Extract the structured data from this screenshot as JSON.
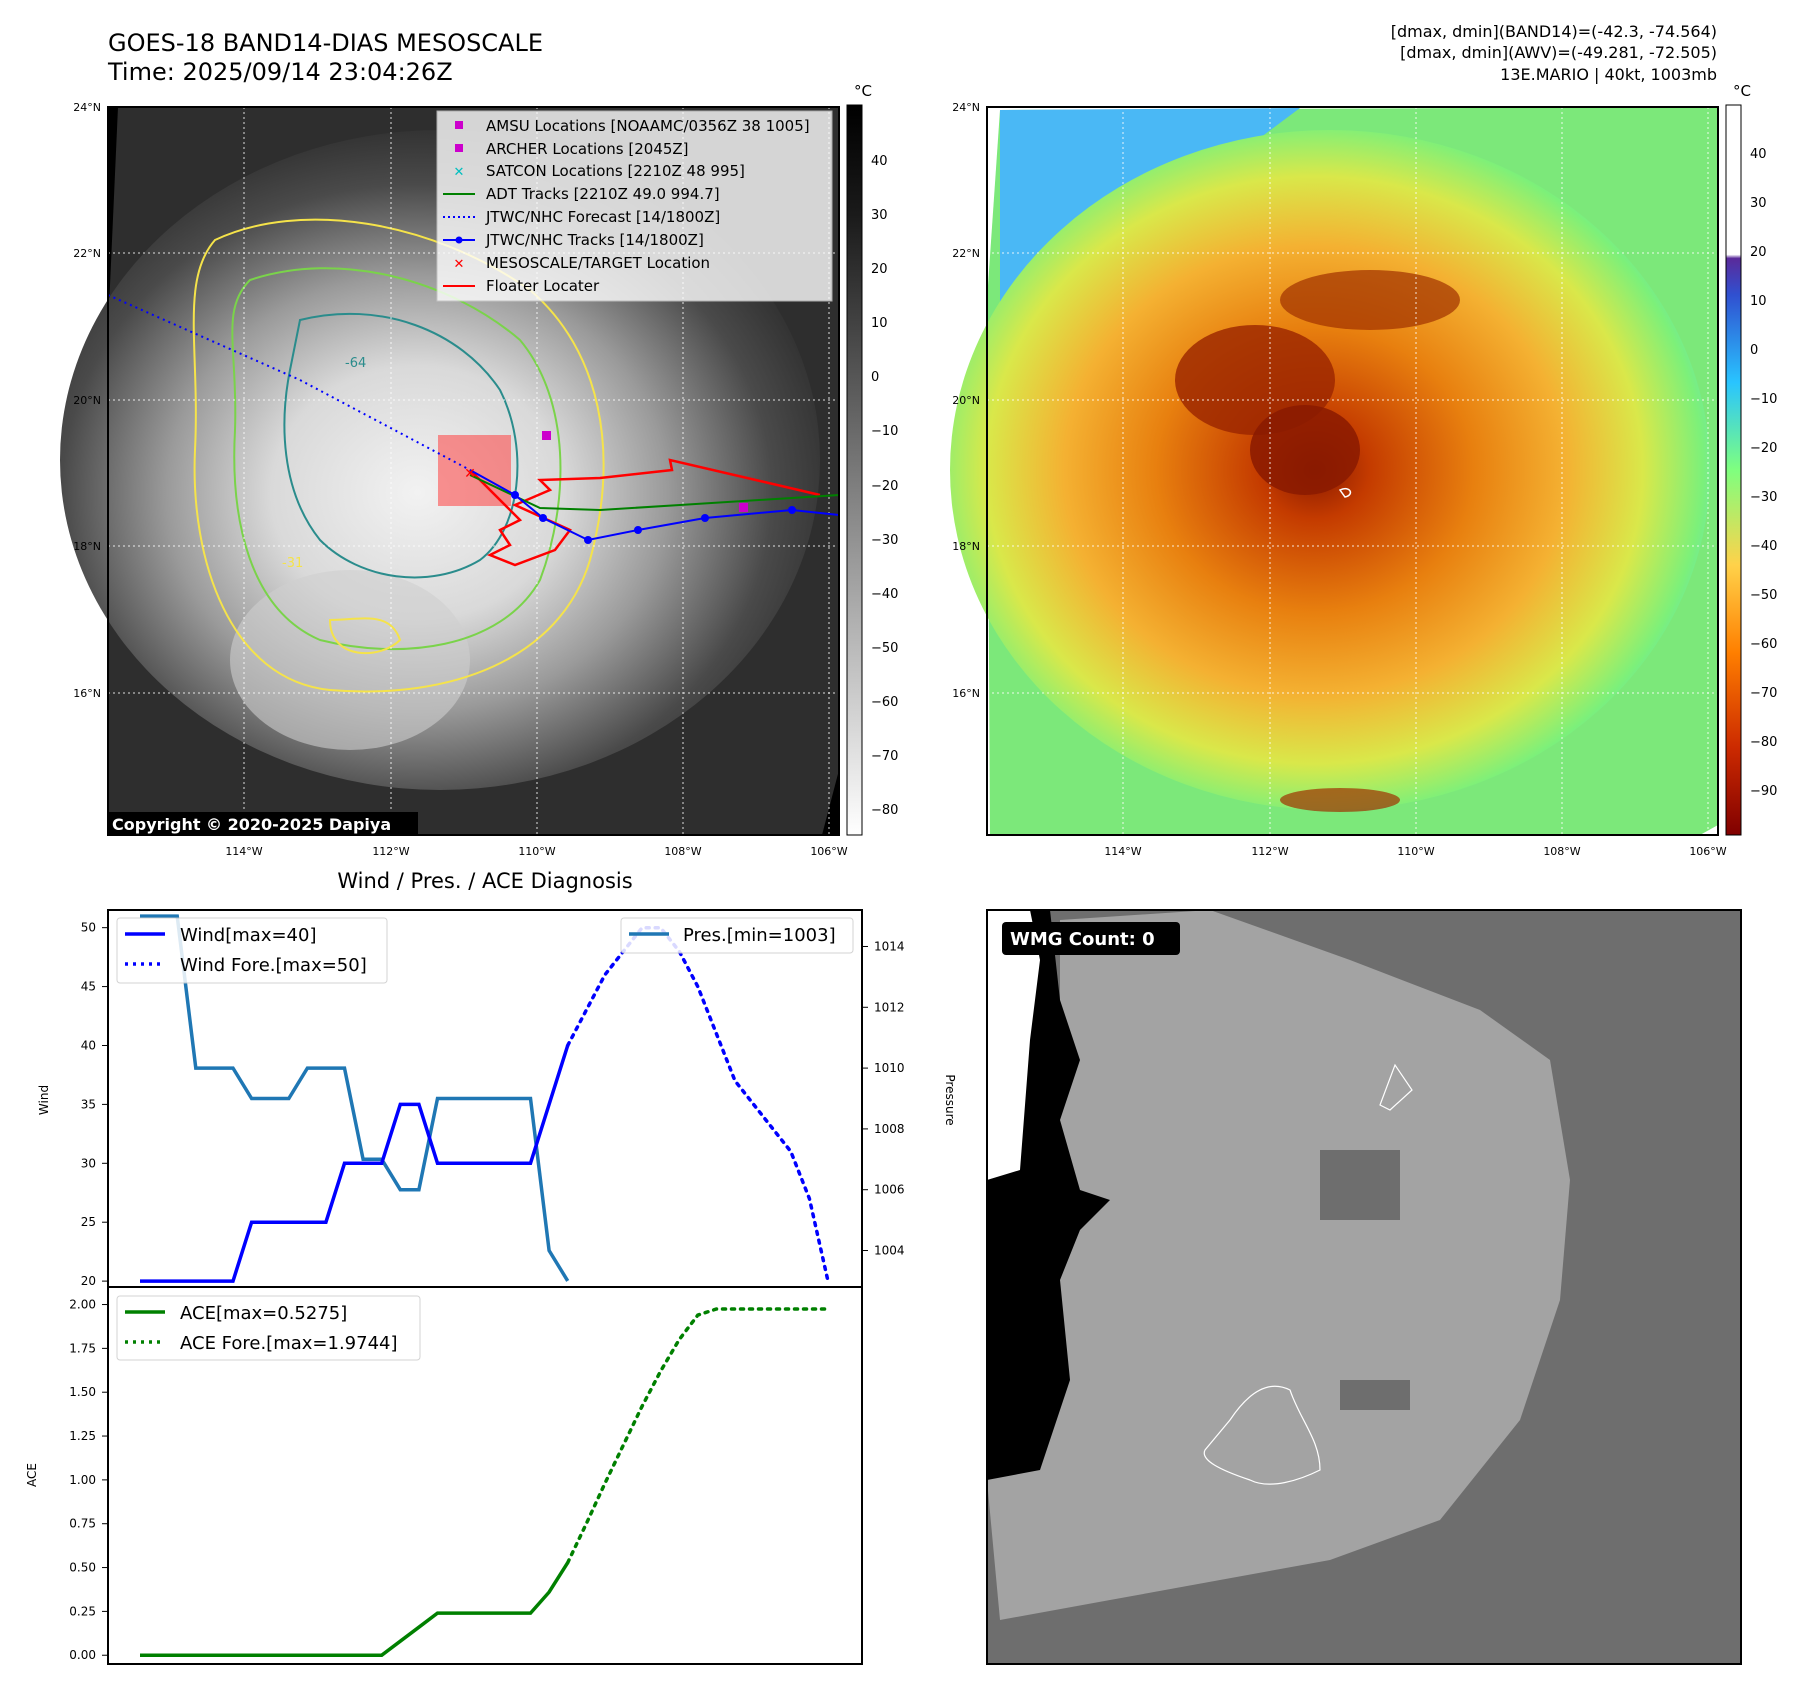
{
  "header": {
    "title_line1": "GOES-18 BAND14-DIAS MESOSCALE",
    "title_line2": "Time: 2025/09/14 23:04:26Z",
    "stats_line1": "[dmax, dmin](BAND14)=(-42.3, -74.564)",
    "stats_line2": "[dmax, dmin](AWV)=(-49.281, -72.505)",
    "stats_line3": "13E.MARIO | 40kt, 1003mb"
  },
  "maps": {
    "lat_labels": [
      "24°N",
      "22°N",
      "20°N",
      "18°N",
      "16°N"
    ],
    "lon_labels": [
      "114°W",
      "112°W",
      "110°W",
      "108°W",
      "106°W"
    ],
    "copyright": "Copyright © 2020-2025 Dapiya",
    "contour_labels": [
      "-31",
      "-64"
    ]
  },
  "ir_colorbar": {
    "unit": "°C",
    "ticks": [
      "40",
      "30",
      "20",
      "10",
      "0",
      "−10",
      "−20",
      "−30",
      "−40",
      "−50",
      "−60",
      "−70",
      "−80"
    ],
    "colors": [
      "#000000",
      "#ffffff"
    ]
  },
  "wv_colorbar": {
    "unit": "°C",
    "ticks": [
      "40",
      "30",
      "20",
      "10",
      "0",
      "−10",
      "−20",
      "−30",
      "−40",
      "−50",
      "−60",
      "−70",
      "−80",
      "−90"
    ],
    "colors": [
      "#800000",
      "#cc3300",
      "#ff7f00",
      "#ffd24a",
      "#7fff7f",
      "#29c4ff",
      "#3050d0",
      "#5a2a9a",
      "#ffffff"
    ]
  },
  "map_legend": [
    {
      "label": "AMSU Locations [NOAAMC/0356Z 38 1005]",
      "marker": "square",
      "color": "#cc00cc"
    },
    {
      "label": "ARCHER Locations [2045Z]",
      "marker": "square",
      "color": "#cc00cc"
    },
    {
      "label": "SATCON Locations [2210Z 48 995]",
      "marker": "x",
      "color": "#00bfbf"
    },
    {
      "label": "ADT Tracks [2210Z 49.0 994.7]",
      "marker": "line",
      "color": "#008000"
    },
    {
      "label": "JTWC/NHC Forecast [14/1800Z]",
      "marker": "dotted",
      "color": "#0000ff"
    },
    {
      "label": "JTWC/NHC Tracks [14/1800Z]",
      "marker": "line-dot",
      "color": "#0000ff"
    },
    {
      "label": "MESOSCALE/TARGET Location",
      "marker": "x",
      "color": "#ff0000"
    },
    {
      "label": "Floater Locater",
      "marker": "line",
      "color": "#ff0000"
    }
  ],
  "diagnosis": {
    "title": "Wind / Pres. / ACE Diagnosis",
    "wind_axis_label": "Wind",
    "pressure_axis_label": "Pressure",
    "ace_axis_label": "ACE",
    "wind_ticks": [
      "50",
      "45",
      "40",
      "35",
      "30",
      "25",
      "20"
    ],
    "pressure_ticks": [
      "1014",
      "1012",
      "1010",
      "1008",
      "1006",
      "1004"
    ],
    "ace_ticks": [
      "2.00",
      "1.75",
      "1.50",
      "1.25",
      "1.00",
      "0.75",
      "0.50",
      "0.25",
      "0.00"
    ],
    "legend_wind": "Wind[max=40]",
    "legend_wind_fore": "Wind Fore.[max=50]",
    "legend_pres": "Pres.[min=1003]",
    "legend_ace": "ACE[max=0.5275]",
    "legend_ace_fore": "ACE Fore.[max=1.9744]"
  },
  "wmg": {
    "label": "WMG Count: 0"
  },
  "chart_data": [
    {
      "type": "line",
      "title": "Wind / Pres. / ACE Diagnosis",
      "ylabel": "Wind",
      "ylim": [
        19.5,
        51.5
      ],
      "series": [
        {
          "name": "Wind[max=40]",
          "x": [
            0,
            1,
            2,
            3,
            4,
            5,
            6,
            7,
            8,
            9,
            10,
            11,
            12,
            13,
            14,
            15,
            16,
            17,
            18,
            19,
            20,
            21,
            22,
            23
          ],
          "values": [
            20,
            20,
            20,
            20,
            20,
            20,
            25,
            25,
            25,
            25,
            25,
            30,
            30,
            30,
            35,
            35,
            30,
            30,
            30,
            30,
            30,
            30,
            35,
            40
          ]
        },
        {
          "name": "Wind Fore.[max=50]",
          "x": [
            23,
            24,
            25,
            26,
            27,
            28,
            29,
            30,
            31,
            32,
            33,
            34,
            35,
            36,
            37
          ],
          "values": [
            40,
            43,
            46,
            48,
            50,
            50,
            48,
            45,
            41,
            37,
            35,
            33,
            31,
            27,
            20
          ]
        }
      ]
    },
    {
      "type": "line",
      "ylabel": "Pressure",
      "ylim": [
        1002.8,
        1015.2
      ],
      "series": [
        {
          "name": "Pres.[min=1003]",
          "x": [
            0,
            1,
            2,
            3,
            4,
            5,
            6,
            7,
            8,
            9,
            10,
            11,
            12,
            13,
            14,
            15,
            16,
            17,
            18,
            19,
            20,
            21,
            22,
            23
          ],
          "values": [
            1015,
            1015,
            1015,
            1010,
            1010,
            1010,
            1009,
            1009,
            1009,
            1010,
            1010,
            1010,
            1007,
            1007,
            1006,
            1006,
            1009,
            1009,
            1009,
            1009,
            1009,
            1009,
            1004,
            1003
          ]
        }
      ]
    },
    {
      "type": "line",
      "ylabel": "ACE",
      "ylim": [
        -0.05,
        2.1
      ],
      "series": [
        {
          "name": "ACE[max=0.5275]",
          "x": [
            0,
            2,
            4,
            6,
            8,
            10,
            12,
            13,
            14,
            15,
            16,
            17,
            18,
            19,
            20,
            21,
            22,
            23
          ],
          "values": [
            0,
            0,
            0,
            0,
            0,
            0,
            0,
            0,
            0.08,
            0.16,
            0.24,
            0.24,
            0.24,
            0.24,
            0.24,
            0.24,
            0.36,
            0.5275
          ]
        },
        {
          "name": "ACE Fore.[max=1.9744]",
          "x": [
            23,
            24,
            25,
            26,
            27,
            28,
            29,
            30,
            31,
            32,
            33,
            34,
            35,
            36,
            37
          ],
          "values": [
            0.5275,
            0.75,
            0.98,
            1.2,
            1.42,
            1.62,
            1.8,
            1.94,
            1.9744,
            1.9744,
            1.9744,
            1.9744,
            1.9744,
            1.9744,
            1.9744
          ]
        }
      ]
    }
  ]
}
